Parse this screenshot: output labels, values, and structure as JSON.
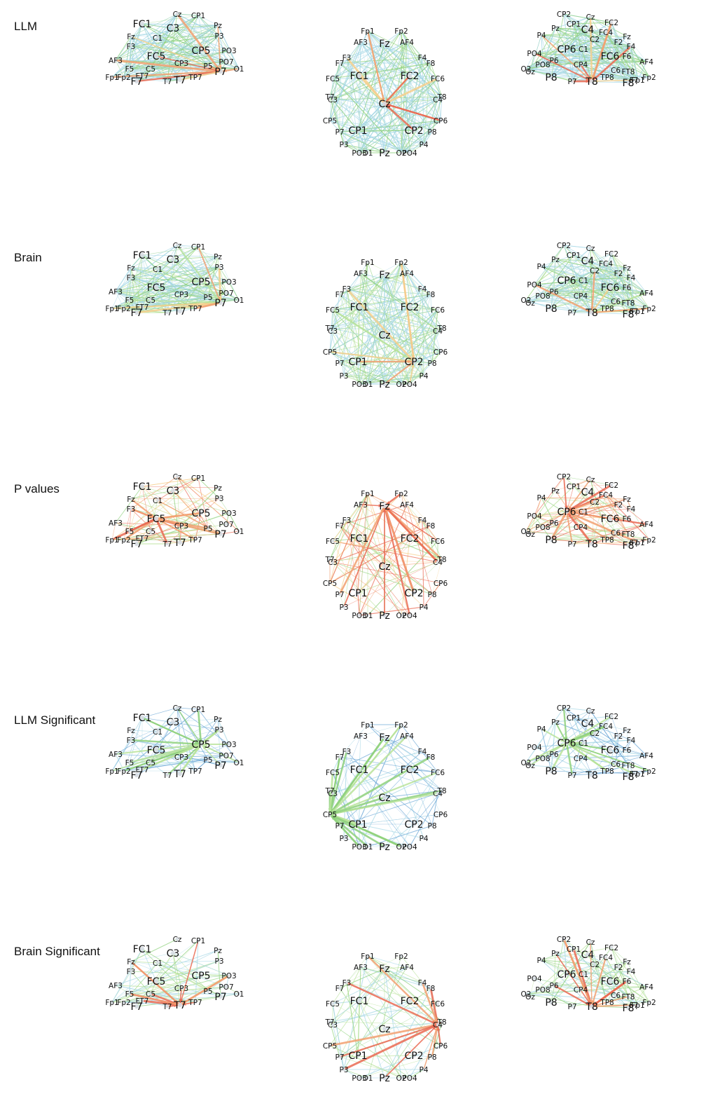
{
  "rows": [
    {
      "label": "LLM",
      "key": "llm"
    },
    {
      "label": "Brain",
      "key": "brain"
    },
    {
      "label": "P values",
      "key": "pvalues"
    },
    {
      "label": "LLM Significant",
      "key": "llm_sig"
    },
    {
      "label": "Brain Significant",
      "key": "brain_sig"
    }
  ],
  "views": [
    "left",
    "top",
    "right"
  ],
  "electrodes": {
    "left": {
      "large": [
        "FC1",
        "C3",
        "FC5",
        "CP5",
        "T7",
        "P7",
        "F7"
      ],
      "small": [
        "Cz",
        "CP1",
        "Fz",
        "F3",
        "Pz",
        "P3",
        "PO3",
        "AF3",
        "O1",
        "Fp1",
        "Fp2",
        "C1",
        "C5",
        "CP3",
        "P5",
        "PO7",
        "F5",
        "FT7",
        "TP7",
        "T7b"
      ]
    },
    "top": {
      "large": [
        "Fz",
        "FC1",
        "FC2",
        "Cz",
        "CP1",
        "CP2",
        "Pz"
      ],
      "small": [
        "Fp1",
        "Fp2",
        "AF3",
        "AF4",
        "F3",
        "F4",
        "F7",
        "F8",
        "FC5",
        "FC6",
        "T7",
        "T8",
        "C3",
        "C4",
        "CP5",
        "CP6",
        "P7",
        "P8",
        "P3",
        "P4",
        "PO3",
        "PO4",
        "O1",
        "O2"
      ]
    },
    "right": {
      "large": [
        "C4",
        "CP6",
        "FC6",
        "T8",
        "F8",
        "P8"
      ],
      "small": [
        "CP2",
        "Cz",
        "FC2",
        "Pz",
        "P4",
        "Fz",
        "F4",
        "AF4",
        "PO4",
        "O2",
        "Oz",
        "Fp2",
        "Fp1",
        "CP1",
        "C2",
        "FC4",
        "F6",
        "C6",
        "CP4",
        "P6",
        "PO8",
        "FT8",
        "TP8",
        "F2",
        "C1",
        "F7",
        "P7"
      ]
    }
  },
  "edge_colors": {
    "strong": "#ea6a52",
    "medium": "#f2a071",
    "weak_warm": "#f6cf8c",
    "green": "#8fd17c",
    "light_green": "#b9e39a",
    "blue": "#6aa5d6",
    "light_blue": "#a5d7e5",
    "node": "#d7dde3"
  }
}
